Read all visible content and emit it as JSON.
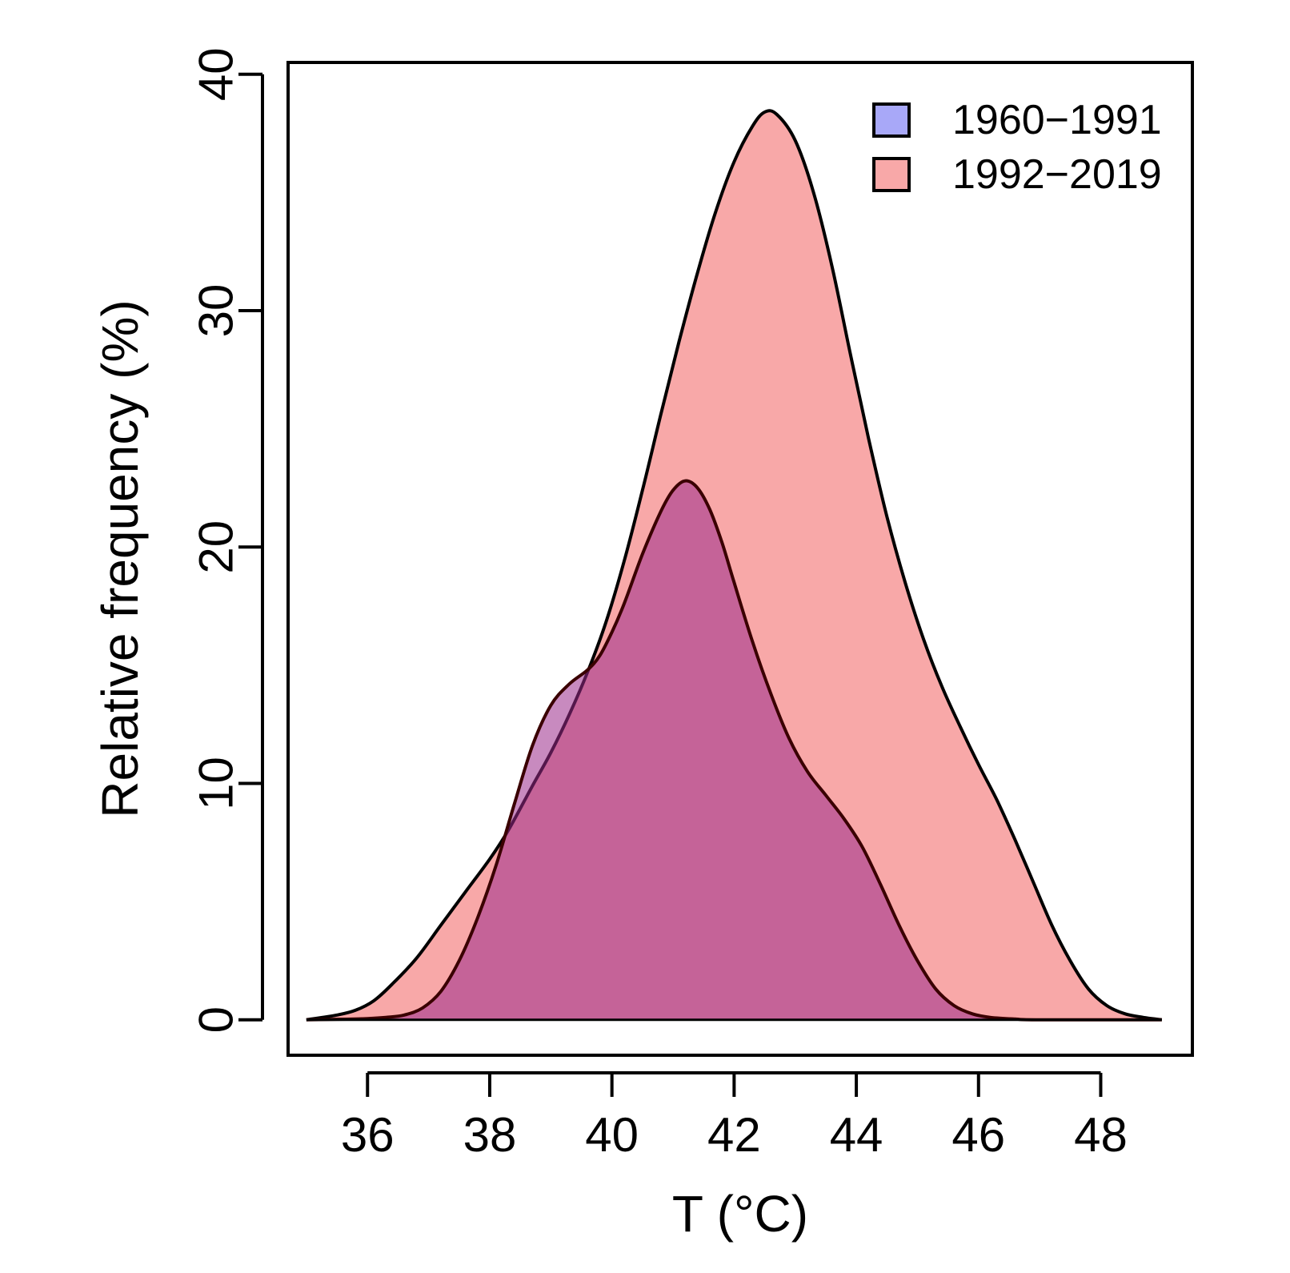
{
  "chart_data": {
    "type": "area",
    "title": "",
    "xlabel": "T (°C)",
    "ylabel": "Relative frequency (%)",
    "xlim": [
      34.7,
      49.5
    ],
    "ylim": [
      -1.5,
      40.5
    ],
    "x_ticks": [
      36,
      38,
      40,
      42,
      44,
      46,
      48
    ],
    "y_ticks": [
      0,
      10,
      20,
      30,
      40
    ],
    "grid": false,
    "legend_position": "top-right",
    "series": [
      {
        "name": "1960−1991",
        "color": "#a8a8f8",
        "points": [
          [
            35.0,
            0.0
          ],
          [
            35.5,
            0.02
          ],
          [
            36.0,
            0.05
          ],
          [
            36.3,
            0.1
          ],
          [
            36.6,
            0.2
          ],
          [
            36.9,
            0.5
          ],
          [
            37.2,
            1.2
          ],
          [
            37.5,
            2.5
          ],
          [
            37.8,
            4.3
          ],
          [
            38.1,
            6.5
          ],
          [
            38.4,
            9.1
          ],
          [
            38.7,
            11.6
          ],
          [
            39.0,
            13.3
          ],
          [
            39.3,
            14.2
          ],
          [
            39.6,
            14.8
          ],
          [
            39.8,
            15.4
          ],
          [
            40.0,
            16.4
          ],
          [
            40.2,
            17.6
          ],
          [
            40.5,
            19.7
          ],
          [
            40.8,
            21.5
          ],
          [
            41.0,
            22.4
          ],
          [
            41.2,
            22.8
          ],
          [
            41.4,
            22.5
          ],
          [
            41.6,
            21.6
          ],
          [
            41.8,
            20.2
          ],
          [
            42.0,
            18.5
          ],
          [
            42.3,
            16.0
          ],
          [
            42.6,
            13.8
          ],
          [
            42.9,
            11.9
          ],
          [
            43.2,
            10.5
          ],
          [
            43.5,
            9.5
          ],
          [
            43.8,
            8.5
          ],
          [
            44.1,
            7.3
          ],
          [
            44.4,
            5.7
          ],
          [
            44.7,
            4.0
          ],
          [
            45.0,
            2.5
          ],
          [
            45.3,
            1.3
          ],
          [
            45.6,
            0.6
          ],
          [
            45.9,
            0.25
          ],
          [
            46.2,
            0.1
          ],
          [
            46.6,
            0.03
          ],
          [
            47.0,
            0.0
          ],
          [
            49.0,
            0.0
          ]
        ]
      },
      {
        "name": "1992−2019",
        "color": "#f8a8a8",
        "points": [
          [
            35.0,
            0.0
          ],
          [
            35.5,
            0.2
          ],
          [
            35.8,
            0.4
          ],
          [
            36.1,
            0.8
          ],
          [
            36.4,
            1.5
          ],
          [
            36.8,
            2.6
          ],
          [
            37.2,
            4.0
          ],
          [
            37.6,
            5.4
          ],
          [
            38.0,
            6.8
          ],
          [
            38.3,
            8.0
          ],
          [
            38.7,
            9.9
          ],
          [
            39.0,
            11.3
          ],
          [
            39.3,
            12.9
          ],
          [
            39.6,
            14.7
          ],
          [
            39.9,
            16.8
          ],
          [
            40.2,
            19.4
          ],
          [
            40.5,
            22.4
          ],
          [
            40.8,
            25.6
          ],
          [
            41.1,
            28.7
          ],
          [
            41.4,
            31.6
          ],
          [
            41.7,
            34.2
          ],
          [
            42.0,
            36.3
          ],
          [
            42.3,
            37.8
          ],
          [
            42.5,
            38.4
          ],
          [
            42.7,
            38.3
          ],
          [
            43.0,
            37.2
          ],
          [
            43.3,
            35.0
          ],
          [
            43.6,
            31.9
          ],
          [
            43.9,
            28.2
          ],
          [
            44.2,
            24.6
          ],
          [
            44.5,
            21.3
          ],
          [
            44.8,
            18.5
          ],
          [
            45.1,
            16.1
          ],
          [
            45.4,
            14.1
          ],
          [
            45.7,
            12.4
          ],
          [
            46.0,
            10.8
          ],
          [
            46.3,
            9.3
          ],
          [
            46.6,
            7.6
          ],
          [
            46.9,
            5.8
          ],
          [
            47.2,
            4.0
          ],
          [
            47.5,
            2.5
          ],
          [
            47.8,
            1.3
          ],
          [
            48.1,
            0.6
          ],
          [
            48.4,
            0.25
          ],
          [
            48.7,
            0.1
          ],
          [
            49.0,
            0.0
          ]
        ]
      }
    ]
  }
}
